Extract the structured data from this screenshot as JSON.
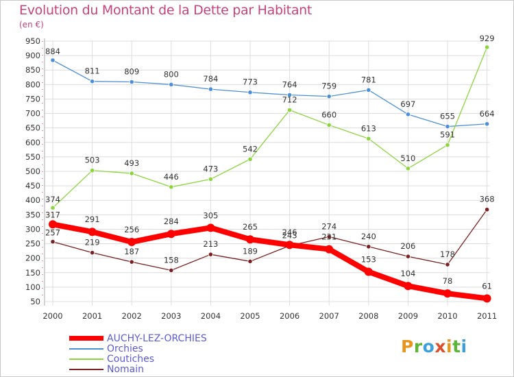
{
  "title": "Evolution du Montant de la Dette par Habitant",
  "subtitle": "(en €)",
  "logo": {
    "text": "Proxiti",
    "letters": [
      {
        "ch": "P",
        "color": "#e8951e"
      },
      {
        "ch": "r",
        "color": "#5bb537"
      },
      {
        "ch": "o",
        "color": "#3c9fd9"
      },
      {
        "ch": "x",
        "color": "#d94f2b"
      },
      {
        "ch": "i",
        "color": "#e8951e"
      },
      {
        "ch": "t",
        "color": "#5bb537"
      },
      {
        "ch": "i",
        "color": "#3c9fd9"
      }
    ]
  },
  "colors": {
    "grid": "#dcdcdc",
    "tick_text": "#333333",
    "axis": "#aaaaaa",
    "minor_ticks": "#e0245e"
  },
  "chart_data": {
    "type": "line",
    "title": "Evolution du Montant de la Dette par Habitant",
    "subtitle": "(en €)",
    "x": [
      "2000",
      "2001",
      "2002",
      "2003",
      "2004",
      "2005",
      "2006",
      "2007",
      "2008",
      "2009",
      "2010",
      "2011"
    ],
    "ylim": [
      50,
      950
    ],
    "yticks": [
      50,
      100,
      150,
      200,
      250,
      300,
      350,
      400,
      450,
      500,
      550,
      600,
      650,
      700,
      750,
      800,
      850,
      900,
      950
    ],
    "grid": true,
    "legend_position": "bottom-left",
    "series": [
      {
        "name": "AUCHY-LEZ-ORCHIES",
        "color": "#ff0000",
        "values": [
          317,
          291,
          256,
          284,
          305,
          265,
          246,
          231,
          153,
          104,
          78,
          61
        ],
        "labels": [
          "317",
          "291",
          "256",
          "284",
          "305",
          "265",
          "246",
          "231",
          "153",
          "104",
          "78",
          "61"
        ],
        "thick": true
      },
      {
        "name": "Orchies",
        "color": "#4d8fd6",
        "values": [
          884,
          811,
          809,
          800,
          784,
          773,
          764,
          759,
          781,
          697,
          655,
          664
        ],
        "labels": [
          "884",
          "811",
          "809",
          "800",
          "784",
          "773",
          "764",
          "759",
          "781",
          "697",
          "655",
          "664"
        ],
        "thick": false
      },
      {
        "name": "Coutiches",
        "color": "#8bd43d",
        "values": [
          374,
          503,
          493,
          446,
          473,
          542,
          712,
          660,
          613,
          510,
          591,
          929
        ],
        "labels": [
          "374",
          "503",
          "493",
          "446",
          "473",
          "542",
          "712",
          "660",
          "613",
          "510",
          "591",
          "929"
        ],
        "thick": false
      },
      {
        "name": "Nomain",
        "color": "#7a2020",
        "values": [
          257,
          219,
          187,
          158,
          213,
          189,
          243,
          274,
          240,
          206,
          178,
          368
        ],
        "labels": [
          "257",
          "219",
          "187",
          "158",
          "213",
          "189",
          "243",
          "274",
          "240",
          "206",
          "178",
          "368"
        ],
        "thick": false
      }
    ]
  }
}
